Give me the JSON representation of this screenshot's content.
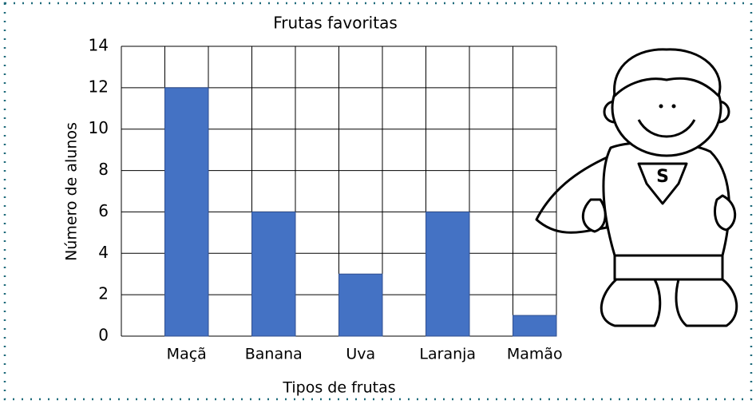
{
  "chart_data": {
    "type": "bar",
    "title": "Frutas favoritas",
    "x_label": "Tipos de frutas",
    "y_label": "Número de alunos",
    "categories": [
      "Maçã",
      "Banana",
      "Uva",
      "Laranja",
      "Mamão"
    ],
    "values": [
      12,
      6,
      3,
      6,
      1
    ],
    "color": "#4472c4",
    "ylim": [
      0,
      14
    ],
    "yticks": [
      0,
      2,
      4,
      6,
      8,
      10,
      12,
      14
    ],
    "grid": true
  }
}
